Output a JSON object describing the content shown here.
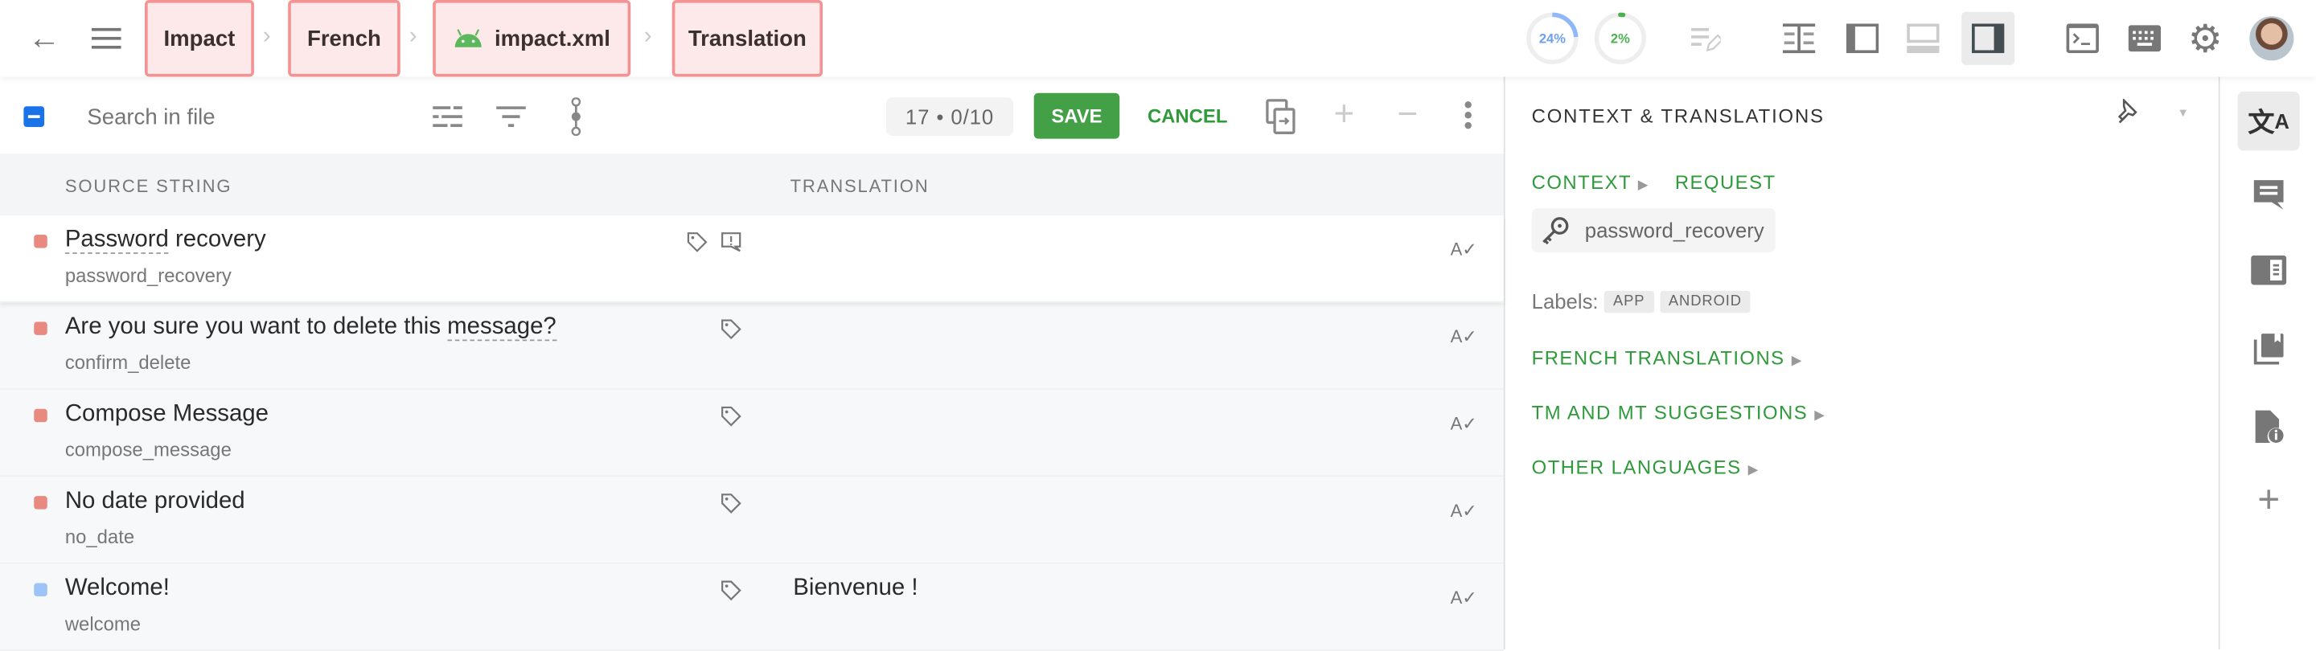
{
  "header": {
    "breadcrumbs": [
      "Impact",
      "French",
      "impact.xml",
      "Translation"
    ],
    "progress": [
      {
        "label": "24%",
        "value": 24,
        "color": "#90b8f8"
      },
      {
        "label": "2%",
        "value": 2,
        "color": "#4caf50"
      }
    ]
  },
  "toolbar": {
    "search_placeholder": "Search in file",
    "counter": "17 • 0/10",
    "save_label": "SAVE",
    "cancel_label": "CANCEL"
  },
  "table": {
    "columns": [
      "SOURCE STRING",
      "TRANSLATION"
    ],
    "rows": [
      {
        "source": "Password recovery",
        "key": "password_recovery",
        "translation": "",
        "status_color": "#e88a80"
      },
      {
        "source": "Are you sure you want to delete this message?",
        "key": "confirm_delete",
        "translation": "",
        "status_color": "#e88a80"
      },
      {
        "source": "Compose Message",
        "key": "compose_message",
        "translation": "",
        "status_color": "#e88a80"
      },
      {
        "source": "No date provided",
        "key": "no_date",
        "translation": "",
        "status_color": "#e88a80"
      },
      {
        "source": "Welcome!",
        "key": "welcome",
        "translation": "Bienvenue !",
        "status_color": "#9dc3f7"
      }
    ]
  },
  "panel": {
    "title": "CONTEXT & TRANSLATIONS",
    "context_label": "CONTEXT",
    "request_label": "REQUEST",
    "key": "password_recovery",
    "labels_caption": "Labels:",
    "labels": [
      "APP",
      "ANDROID"
    ],
    "sections": [
      "FRENCH TRANSLATIONS",
      "TM AND MT SUGGESTIONS",
      "OTHER LANGUAGES"
    ]
  },
  "colors": {
    "accent": "#43a047",
    "brand_blue": "#1a73e8"
  }
}
